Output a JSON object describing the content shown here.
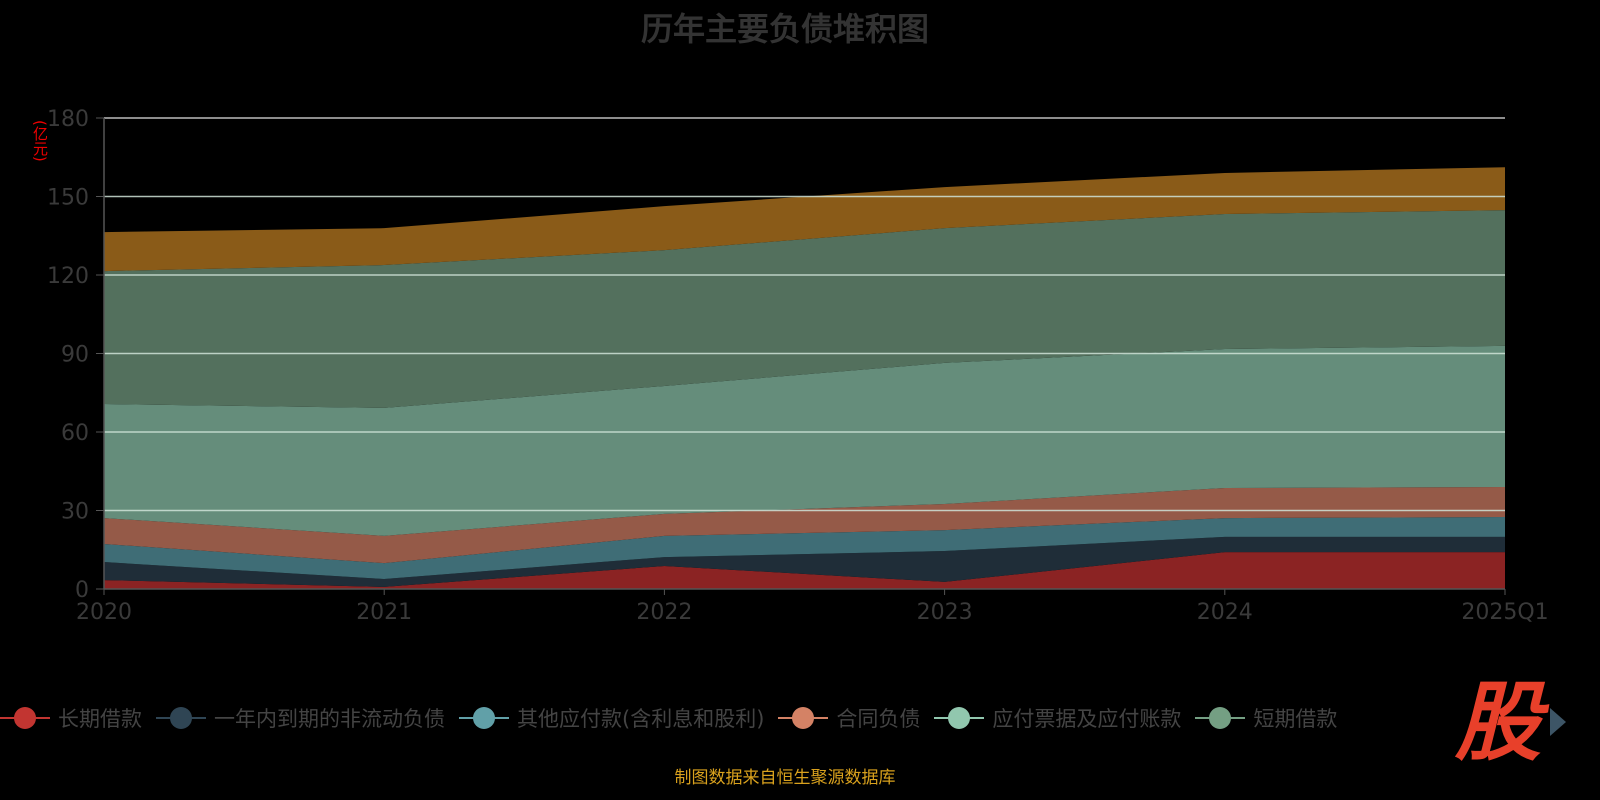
{
  "title": "历年主要负债堆积图",
  "source": "制图数据来自恒生聚源数据库",
  "logo": "股",
  "chart_data": {
    "type": "area",
    "stacked": true,
    "title": "历年主要负债堆积图",
    "ylabel": "(亿元)",
    "xlabel": "",
    "ylim": [
      0,
      180
    ],
    "yticks": [
      0,
      30,
      60,
      90,
      120,
      150,
      180
    ],
    "categories": [
      "2020",
      "2021",
      "2022",
      "2023",
      "2024",
      "2025Q1"
    ],
    "grid": true,
    "legend_position": "bottom",
    "series": [
      {
        "name": "长期借款",
        "color": "#8b2323",
        "legend_color": "#c23531",
        "values": [
          3.4,
          0.8,
          8.8,
          2.7,
          14.1,
          14.1
        ]
      },
      {
        "name": "一年内到期的非流动负债",
        "color": "#1f2d38",
        "legend_color": "#2f4554",
        "values": [
          6.9,
          3.0,
          3.4,
          11.8,
          5.8,
          5.8
        ]
      },
      {
        "name": "其他应付款(含利息和股利)",
        "color": "#3f6d76",
        "legend_color": "#61a0a8",
        "values": [
          6.9,
          6.1,
          8.1,
          8.0,
          7.2,
          7.6
        ]
      },
      {
        "name": "合同负债",
        "color": "#955a48",
        "legend_color": "#d48265",
        "values": [
          9.9,
          10.4,
          8.4,
          10.0,
          11.5,
          11.5
        ]
      },
      {
        "name": "应付票据及应付账款",
        "color": "#658d7b",
        "legend_color": "#91c7ae",
        "values": [
          43.6,
          48.9,
          48.9,
          53.9,
          53.1,
          53.9
        ]
      },
      {
        "name": "短期借款",
        "color": "#53705d",
        "legend_color": "#749f83",
        "values": [
          50.8,
          54.6,
          51.9,
          51.5,
          51.6,
          51.9
        ]
      },
      {
        "color": "#8a5b18",
        "values": [
          14.9,
          14.1,
          16.8,
          15.7,
          15.7,
          16.4
        ]
      }
    ]
  }
}
